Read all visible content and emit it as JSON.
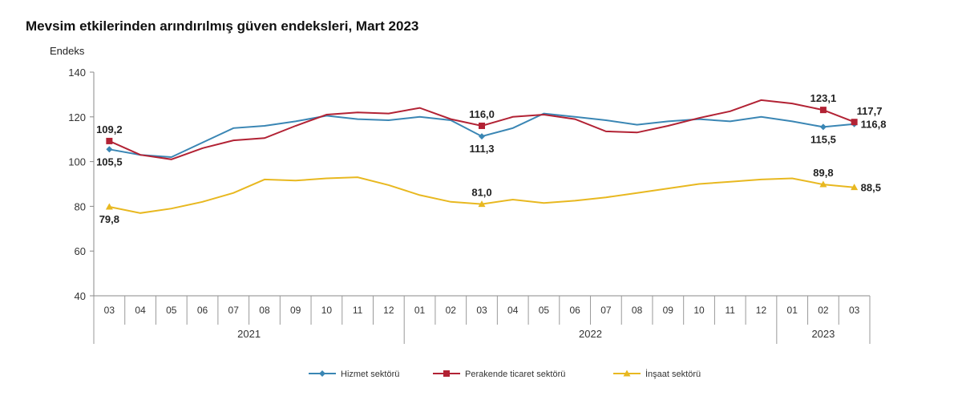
{
  "chart_data": {
    "type": "line",
    "title": "Mevsim etkilerinden arındırılmış güven endeksleri, Mart 2023",
    "ylabel": "Endeks",
    "ylim": [
      40,
      140
    ],
    "yticks": [
      40,
      60,
      80,
      100,
      120,
      140
    ],
    "grid": false,
    "legend": "bottom",
    "categories": [
      "03",
      "04",
      "05",
      "06",
      "07",
      "08",
      "09",
      "10",
      "11",
      "12",
      "01",
      "02",
      "03",
      "04",
      "05",
      "06",
      "07",
      "08",
      "09",
      "10",
      "11",
      "12",
      "01",
      "02",
      "03"
    ],
    "years": [
      {
        "label": "2021",
        "start": 0,
        "end": 9
      },
      {
        "label": "2022",
        "start": 10,
        "end": 21
      },
      {
        "label": "2023",
        "start": 22,
        "end": 24
      }
    ],
    "series": [
      {
        "name": "Hizmet sektörü",
        "color": "#3a86b4",
        "marker": "diamond",
        "values": [
          105.5,
          103.0,
          102.0,
          108.5,
          115.0,
          116.0,
          118.0,
          120.5,
          119.0,
          118.5,
          120.0,
          118.5,
          111.3,
          115.0,
          121.5,
          120.0,
          118.5,
          116.5,
          118.0,
          119.0,
          118.0,
          120.0,
          118.0,
          115.5,
          116.8
        ]
      },
      {
        "name": "Perakende ticaret sektörü",
        "color": "#b22234",
        "marker": "square",
        "values": [
          109.2,
          103.0,
          101.0,
          106.0,
          109.5,
          110.5,
          116.0,
          121.0,
          122.0,
          121.5,
          124.0,
          119.0,
          116.0,
          120.0,
          121.0,
          119.0,
          113.5,
          113.0,
          116.0,
          119.5,
          122.5,
          127.5,
          126.0,
          123.1,
          117.7
        ]
      },
      {
        "name": "İnşaat sektörü",
        "color": "#e8b820",
        "marker": "triangle",
        "values": [
          79.8,
          77.0,
          79.0,
          82.0,
          86.0,
          92.0,
          91.5,
          92.5,
          93.0,
          89.5,
          85.0,
          82.0,
          81.0,
          83.0,
          81.5,
          82.5,
          84.0,
          86.0,
          88.0,
          90.0,
          91.0,
          92.0,
          92.5,
          89.8,
          88.5
        ]
      }
    ],
    "data_labels": [
      {
        "series": 1,
        "index": 0,
        "text": "109,2",
        "pos": "above"
      },
      {
        "series": 0,
        "index": 0,
        "text": "105,5",
        "pos": "below"
      },
      {
        "series": 2,
        "index": 0,
        "text": "79,8",
        "pos": "below"
      },
      {
        "series": 1,
        "index": 12,
        "text": "116,0",
        "pos": "above"
      },
      {
        "series": 0,
        "index": 12,
        "text": "111,3",
        "pos": "below"
      },
      {
        "series": 2,
        "index": 12,
        "text": "81,0",
        "pos": "above"
      },
      {
        "series": 1,
        "index": 23,
        "text": "123,1",
        "pos": "above"
      },
      {
        "series": 0,
        "index": 23,
        "text": "115,5",
        "pos": "below"
      },
      {
        "series": 2,
        "index": 23,
        "text": "89,8",
        "pos": "above"
      },
      {
        "series": 1,
        "index": 24,
        "text": "117,7",
        "pos": "above-right"
      },
      {
        "series": 0,
        "index": 24,
        "text": "116,8",
        "pos": "right"
      },
      {
        "series": 2,
        "index": 24,
        "text": "88,5",
        "pos": "right"
      }
    ]
  }
}
